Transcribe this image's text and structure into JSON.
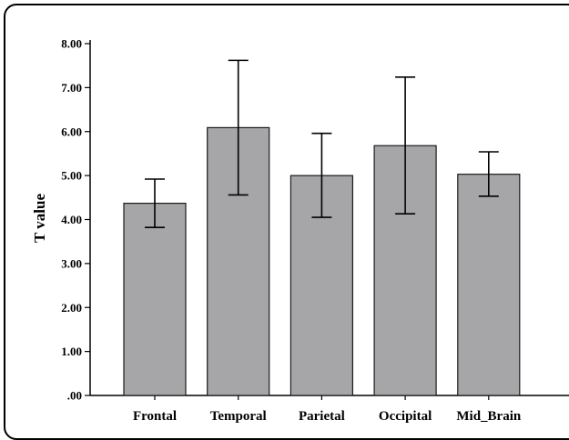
{
  "chart_data": {
    "type": "bar",
    "title": "",
    "xlabel": "",
    "ylabel": "T value",
    "ylim": [
      0,
      8
    ],
    "y_ticks": [
      ".00",
      "1.00",
      "2.00",
      "3.00",
      "4.00",
      "5.00",
      "6.00",
      "7.00",
      "8.00"
    ],
    "categories": [
      "Frontal",
      "Temporal",
      "Parietal",
      "Occipital",
      "Mid_Brain"
    ],
    "values": [
      4.37,
      6.09,
      5.0,
      5.68,
      5.03
    ],
    "error_low": [
      3.82,
      4.56,
      4.05,
      4.13,
      4.53
    ],
    "error_high": [
      4.92,
      7.62,
      5.96,
      7.24,
      5.54
    ],
    "grid": false,
    "legend": "none",
    "colors": {
      "bar_fill": "#a6a6a9",
      "bar_stroke": "#1a1a1a",
      "axis": "#000000",
      "error_bar": "#000000"
    }
  }
}
